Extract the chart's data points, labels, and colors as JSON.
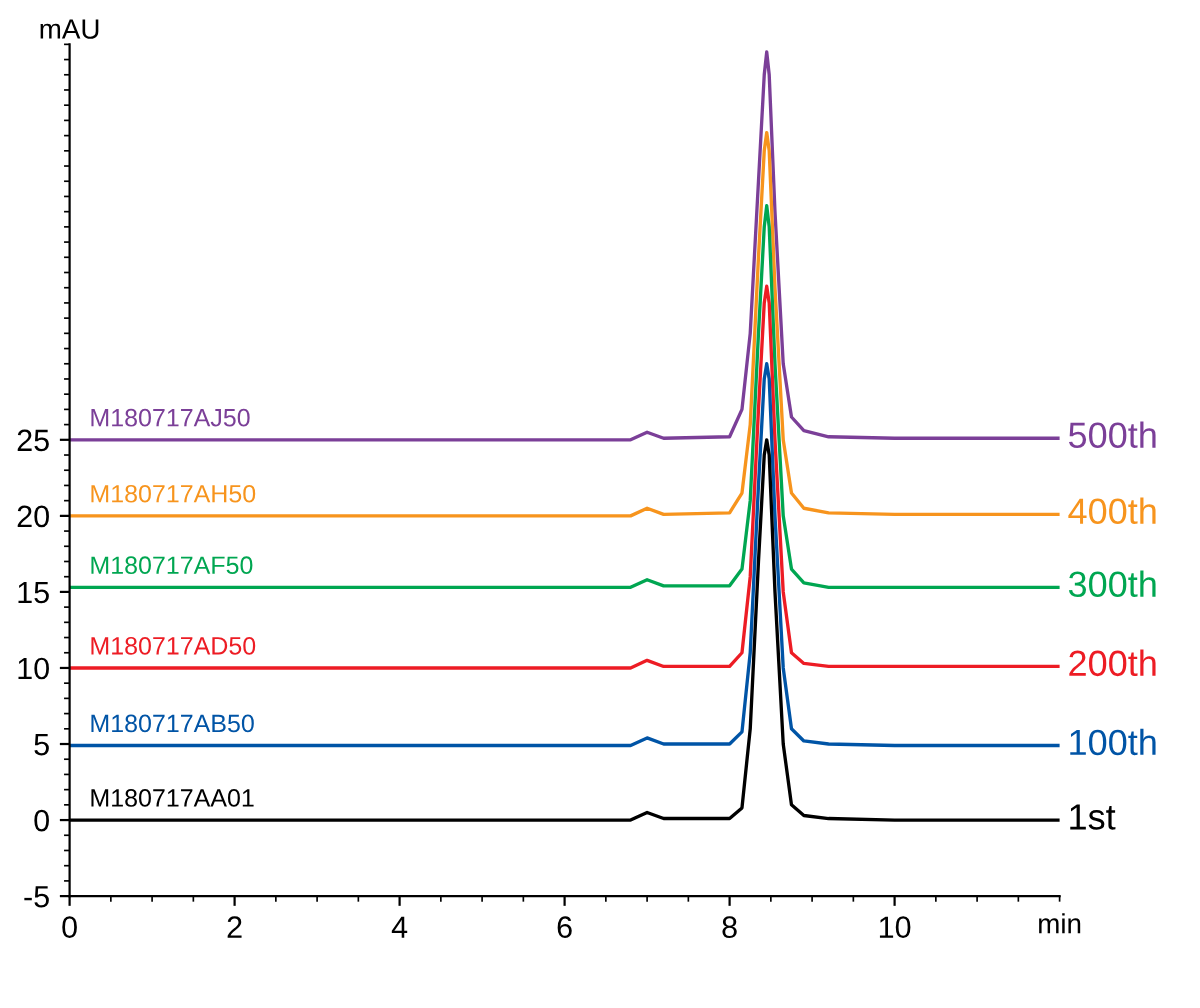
{
  "chart_data": {
    "type": "line",
    "xlabel": "min",
    "ylabel": "mAU",
    "xlim": [
      0,
      12
    ],
    "xticks": [
      0,
      2,
      4,
      6,
      8,
      10
    ],
    "ylim": [
      -5,
      51
    ],
    "yticks": [
      -5,
      0,
      5,
      10,
      15,
      20,
      25
    ],
    "grid": false,
    "legend": false,
    "marker": "none",
    "line_style": "solid",
    "x": [
      0,
      3,
      6.8,
      7.0,
      7.2,
      8.0,
      8.15,
      8.25,
      8.35,
      8.42,
      8.45,
      8.48,
      8.55,
      8.65,
      8.75,
      8.9,
      9.2,
      10,
      12
    ],
    "series": [
      {
        "name": "500th",
        "color": "#7b3f98",
        "values": [
          25,
          25,
          25,
          25.5,
          25.1,
          25.2,
          27,
          32,
          42,
          49,
          50.5,
          49,
          40,
          30,
          26.5,
          25.6,
          25.2,
          25.1,
          25.1
        ]
      },
      {
        "name": "400th",
        "color": "#f7941d",
        "values": [
          20,
          20,
          20,
          20.5,
          20.1,
          20.2,
          21.5,
          26,
          37,
          44,
          45.2,
          44,
          35,
          25,
          21.5,
          20.5,
          20.2,
          20.1,
          20.1
        ]
      },
      {
        "name": "300th",
        "color": "#00a651",
        "values": [
          15.3,
          15.3,
          15.3,
          15.8,
          15.4,
          15.4,
          16.5,
          21,
          32,
          39,
          40.4,
          39,
          30,
          20,
          16.5,
          15.6,
          15.3,
          15.3,
          15.3
        ]
      },
      {
        "name": "200th",
        "color": "#ed1c24",
        "values": [
          10,
          10,
          10,
          10.5,
          10.1,
          10.1,
          11,
          16,
          27,
          34,
          35.1,
          34,
          25,
          15,
          11,
          10.3,
          10.1,
          10.1,
          10.1
        ]
      },
      {
        "name": "100th",
        "color": "#0054a6",
        "values": [
          4.9,
          4.9,
          4.9,
          5.4,
          5.0,
          5.0,
          5.8,
          11,
          22,
          29,
          30,
          29,
          20,
          10,
          6,
          5.2,
          5.0,
          4.9,
          4.9
        ]
      },
      {
        "name": "1st",
        "color": "#000000",
        "values": [
          0,
          0,
          0,
          0.5,
          0.1,
          0.1,
          0.8,
          6,
          17,
          24,
          25,
          24,
          15,
          5,
          1,
          0.3,
          0.1,
          0,
          0
        ]
      }
    ],
    "annotations": [
      "M180717AJ50",
      "M180717AH50",
      "M180717AF50",
      "M180717AD50",
      "M180717AB50",
      "M180717AA01"
    ]
  }
}
